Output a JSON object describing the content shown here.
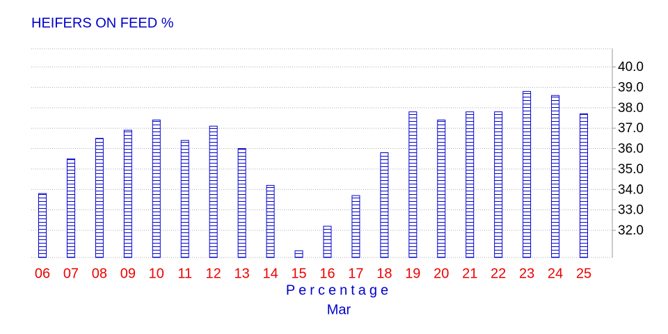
{
  "chart_data": {
    "type": "bar",
    "title": "HEIFERS ON FEED %",
    "x_label": "Percentage",
    "x_period": "Mar",
    "categories": [
      "06",
      "07",
      "08",
      "09",
      "10",
      "11",
      "12",
      "13",
      "14",
      "15",
      "16",
      "17",
      "18",
      "19",
      "20",
      "21",
      "22",
      "23",
      "24",
      "25"
    ],
    "values": [
      33.8,
      35.5,
      36.5,
      36.9,
      37.4,
      36.4,
      37.1,
      36.0,
      34.2,
      31.0,
      32.2,
      33.7,
      35.8,
      37.8,
      37.4,
      37.8,
      37.8,
      38.8,
      38.6,
      37.7
    ],
    "color": "#0000cc",
    "ylim": [
      30.67,
      40.89
    ],
    "yticks": [
      {
        "value": 32,
        "label": "32.0"
      },
      {
        "value": 33,
        "label": "33.0"
      },
      {
        "value": 34,
        "label": "34.0"
      },
      {
        "value": 35,
        "label": "35.0"
      },
      {
        "value": 36,
        "label": "36.0"
      },
      {
        "value": 37,
        "label": "37.0"
      },
      {
        "value": 38,
        "label": "38.0"
      },
      {
        "value": 39,
        "label": "39.0"
      },
      {
        "value": 40,
        "label": "40.0"
      }
    ],
    "grid": true
  }
}
